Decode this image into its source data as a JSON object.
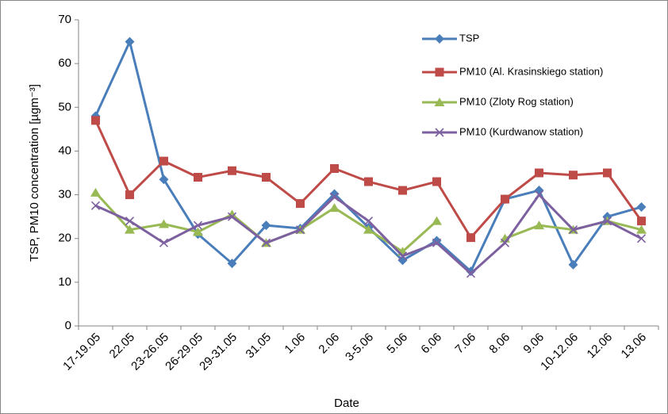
{
  "chart_data": {
    "type": "line",
    "x_label": "Date",
    "y_label": "TSP, PM10 concentration [µgm⁻³]",
    "categories": [
      "17-19.05",
      "22.05",
      "23-26.05",
      "26-29.05",
      "29-31.05",
      "31.05",
      "1.06",
      "2.06",
      "3-5.06",
      "5.06",
      "6.06",
      "7.06",
      "8.06",
      "9.06",
      "10-12.06",
      "12.06",
      "13.06"
    ],
    "series": [
      {
        "name": "TSP",
        "color": "#4a7ebb",
        "marker": "diamond",
        "values": [
          48,
          65,
          33.5,
          21,
          14.3,
          23,
          22.3,
          30.2,
          22.5,
          15,
          19.5,
          12.5,
          29,
          31,
          14,
          25,
          27.2
        ]
      },
      {
        "name": "PM10 (Al. Krasinskiego station)",
        "color": "#be4b48",
        "marker": "square",
        "values": [
          47,
          30,
          37.7,
          34,
          35.5,
          34,
          28,
          36,
          33,
          31,
          33,
          20.2,
          29,
          35,
          34.5,
          35,
          24
        ]
      },
      {
        "name": "PM10 (Zloty Rog station)",
        "color": "#98b954",
        "marker": "triangle",
        "values": [
          30.5,
          22,
          23.3,
          21.5,
          25.5,
          19,
          22,
          27,
          22,
          17,
          24,
          null,
          20,
          23,
          22,
          24,
          22
        ]
      },
      {
        "name": "PM10 (Kurdwanow station)",
        "color": "#7d60a0",
        "marker": "x",
        "values": [
          27.5,
          24,
          19,
          23,
          25,
          19,
          22,
          29.5,
          24,
          16,
          19,
          12,
          19,
          30,
          22,
          24,
          20
        ]
      }
    ],
    "ylim": [
      0,
      70
    ],
    "yticks": [
      0,
      10,
      20,
      30,
      40,
      50,
      60,
      70
    ],
    "grid": false,
    "legend": "upper right"
  }
}
